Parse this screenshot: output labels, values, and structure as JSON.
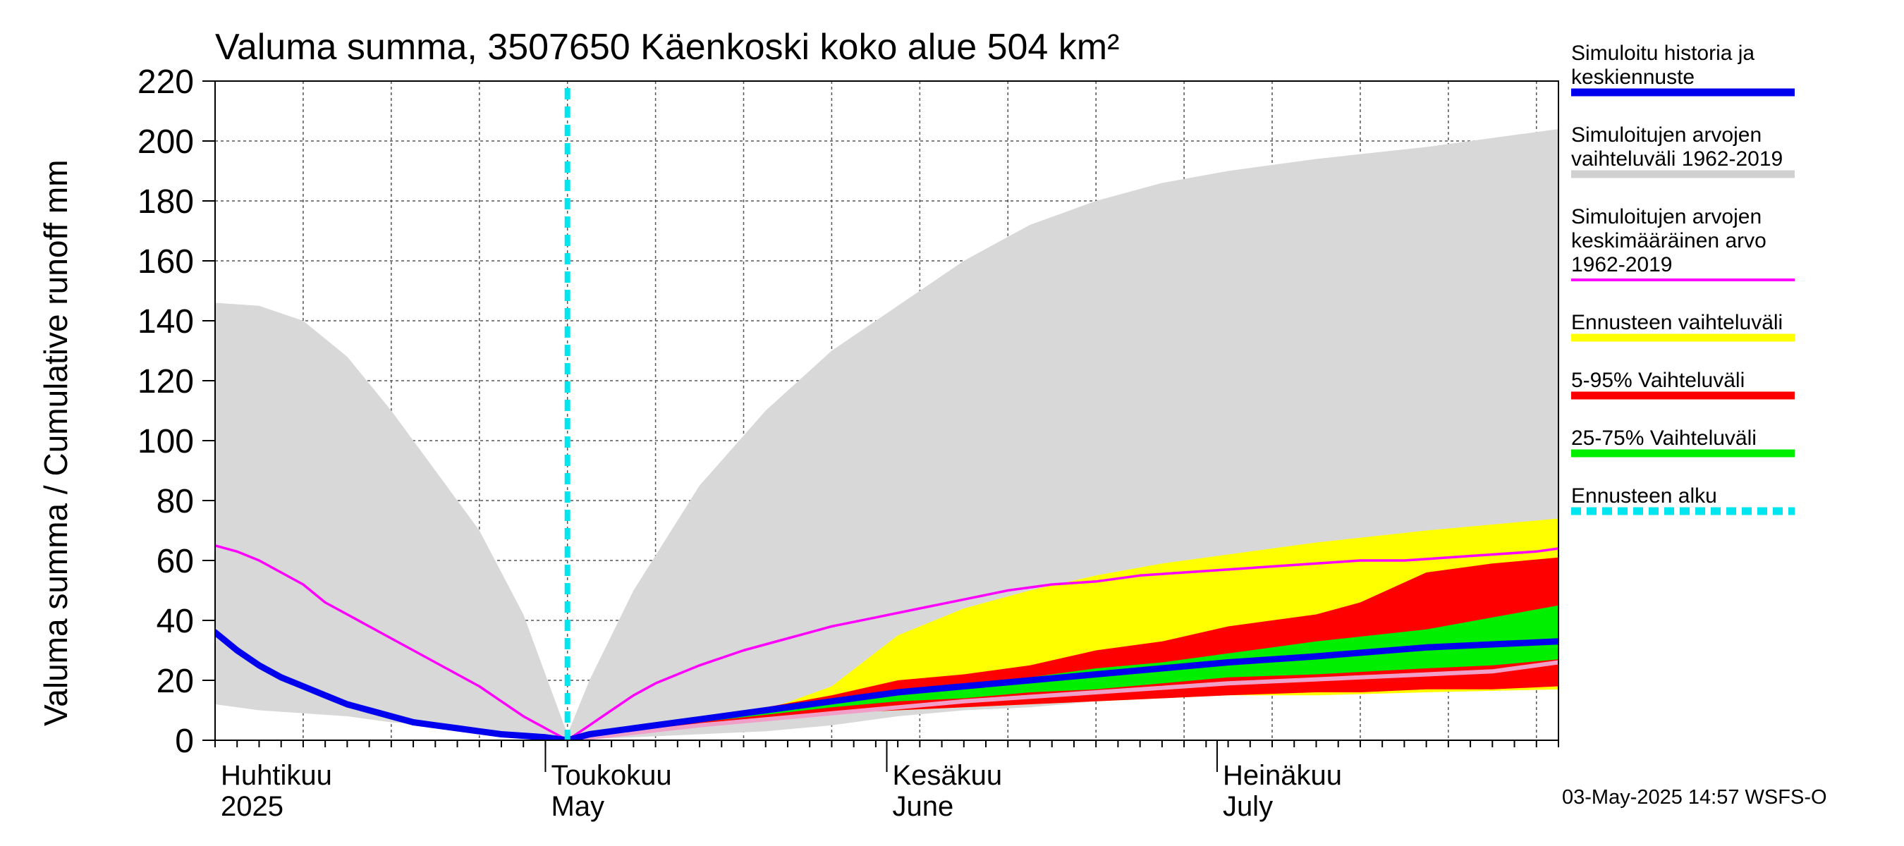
{
  "chart_data": {
    "type": "area",
    "title": "Valuma summa, 3507650 Käenkoski koko alue 504 km²",
    "ylabel": "Valuma summa / Cumulative runoff     mm",
    "ylim": [
      0,
      220
    ],
    "yticks": [
      0,
      20,
      40,
      60,
      80,
      100,
      120,
      140,
      160,
      180,
      200,
      220
    ],
    "x_unit": "days since 2025-04-01",
    "xlim": [
      0,
      122
    ],
    "forecast_start": 32,
    "month_labels": [
      {
        "fi": "Huhtikuu",
        "en": "2025",
        "day": 0
      },
      {
        "fi": "Toukokuu",
        "en": "May",
        "day": 30
      },
      {
        "fi": "Kesäkuu",
        "en": "June",
        "day": 61
      },
      {
        "fi": "Heinäkuu",
        "en": "July",
        "day": 91
      }
    ],
    "month_boundaries": [
      30,
      61,
      91
    ],
    "series": [
      {
        "name": "Simuloitujen arvojen vaihteluväli 1962-2019",
        "kind": "band",
        "color": "#d8d8d8",
        "x": [
          0,
          4,
          8,
          12,
          16,
          20,
          24,
          28,
          30,
          32,
          34,
          38,
          44,
          50,
          56,
          62,
          68,
          74,
          80,
          86,
          92,
          100,
          110,
          122
        ],
        "upper": [
          146,
          145,
          140,
          128,
          110,
          90,
          70,
          42,
          22,
          2,
          20,
          50,
          85,
          110,
          130,
          145,
          160,
          172,
          180,
          186,
          190,
          194,
          198,
          204
        ],
        "lower": [
          12,
          10,
          9,
          8,
          6,
          5,
          3,
          1,
          0.5,
          0,
          0.5,
          1,
          2,
          3,
          5,
          8,
          10,
          11,
          13,
          14,
          15,
          16,
          16,
          17
        ]
      },
      {
        "name": "Ennusteen vaihteluväli",
        "kind": "band",
        "color": "#ffff00",
        "x": [
          32,
          38,
          44,
          50,
          56,
          62,
          68,
          74,
          80,
          86,
          92,
          100,
          110,
          122
        ],
        "upper": [
          0,
          3,
          6,
          10,
          18,
          35,
          44,
          50,
          55,
          59,
          62,
          66,
          70,
          74
        ],
        "lower": [
          0,
          3,
          5,
          7,
          9,
          10,
          11,
          12,
          13,
          14,
          15,
          15,
          16,
          17
        ]
      },
      {
        "name": "5-95% Vaihteluväli",
        "kind": "band",
        "color": "#ff0000",
        "x": [
          32,
          38,
          44,
          50,
          56,
          62,
          68,
          74,
          80,
          86,
          92,
          100,
          104,
          110,
          116,
          122
        ],
        "upper": [
          0,
          4,
          7,
          11,
          15,
          20,
          22,
          25,
          30,
          33,
          38,
          42,
          46,
          56,
          59,
          61
        ],
        "lower": [
          0,
          3,
          5,
          7,
          9,
          10,
          11,
          12,
          13,
          14,
          15,
          16,
          16,
          17,
          17,
          18
        ]
      },
      {
        "name": "25-75% Vaihteluväli",
        "kind": "band",
        "color": "#00ee00",
        "x": [
          32,
          38,
          44,
          50,
          56,
          62,
          68,
          74,
          80,
          86,
          92,
          100,
          110,
          116,
          122
        ],
        "upper": [
          0,
          3.5,
          6.5,
          10,
          13,
          17,
          19,
          21,
          24,
          26,
          29,
          33,
          37,
          41,
          45
        ],
        "lower": [
          0,
          3.3,
          6,
          8.5,
          11,
          13,
          14,
          16,
          17,
          19,
          21,
          22,
          24,
          25,
          27
        ]
      },
      {
        "name": "Simuloitujen arvojen keskimääräinen arvo 1962-2019",
        "kind": "line",
        "color": "#ff00ff",
        "x": [
          0,
          2,
          4,
          6,
          8,
          10,
          12,
          14,
          16,
          18,
          20,
          22,
          24,
          26,
          28,
          30,
          32,
          34,
          36,
          38,
          40,
          44,
          48,
          52,
          56,
          60,
          64,
          68,
          72,
          76,
          80,
          84,
          88,
          92,
          96,
          100,
          104,
          108,
          112,
          116,
          120,
          122
        ],
        "y": [
          65,
          63,
          60,
          56,
          52,
          46,
          42,
          38,
          34,
          30,
          26,
          22,
          18,
          13,
          8,
          4,
          0,
          5,
          10,
          15,
          19,
          25,
          30,
          34,
          38,
          41,
          44,
          47,
          50,
          52,
          53,
          55,
          56,
          57,
          58,
          59,
          60,
          60,
          61,
          62,
          63,
          64
        ]
      },
      {
        "name": "Ensemble median (light)",
        "kind": "line",
        "color": "#f0a0c8",
        "x": [
          32,
          44,
          56,
          68,
          80,
          92,
          104,
          116,
          122
        ],
        "y": [
          0,
          5,
          9,
          13,
          16,
          19,
          21,
          23,
          26
        ]
      },
      {
        "name": "Simuloitu historia ja keskiennuste",
        "kind": "line",
        "color": "#0000ee",
        "x": [
          0,
          2,
          4,
          6,
          8,
          10,
          12,
          14,
          16,
          18,
          20,
          22,
          24,
          26,
          28,
          30,
          32,
          34,
          38,
          44,
          50,
          56,
          62,
          68,
          74,
          80,
          86,
          92,
          100,
          110,
          116,
          122
        ],
        "y": [
          36,
          30,
          25,
          21,
          18,
          15,
          12,
          10,
          8,
          6,
          5,
          4,
          3,
          2,
          1.5,
          1,
          0,
          2,
          4,
          7,
          10,
          13,
          16,
          18,
          20,
          22,
          24,
          26,
          28,
          31,
          32,
          33
        ]
      }
    ]
  },
  "legend": {
    "items": [
      {
        "lines": [
          "Simuloitu historia ja",
          "keskiennuste"
        ],
        "color": "#0000ee",
        "style": "solid"
      },
      {
        "lines": [
          "Simuloitujen arvojen",
          "vaihteluväli 1962-2019"
        ],
        "color": "#d0d0d0",
        "style": "solid"
      },
      {
        "lines": [
          "Simuloitujen arvojen",
          "keskimääräinen arvo",
          "   1962-2019"
        ],
        "color": "#ff00ff",
        "style": "thin"
      },
      {
        "lines": [
          "Ennusteen vaihteluväli"
        ],
        "color": "#ffff00",
        "style": "solid"
      },
      {
        "lines": [
          "5-95% Vaihteluväli"
        ],
        "color": "#ff0000",
        "style": "solid"
      },
      {
        "lines": [
          "25-75% Vaihteluväli"
        ],
        "color": "#00ee00",
        "style": "solid"
      },
      {
        "lines": [
          "Ennusteen alku"
        ],
        "color": "#00e5ee",
        "style": "dashed"
      }
    ]
  },
  "footer": {
    "timestamp": "03-May-2025 14:57 WSFS-O"
  },
  "colors": {
    "grid": "#555555",
    "forecast_line": "#00e5ee"
  }
}
